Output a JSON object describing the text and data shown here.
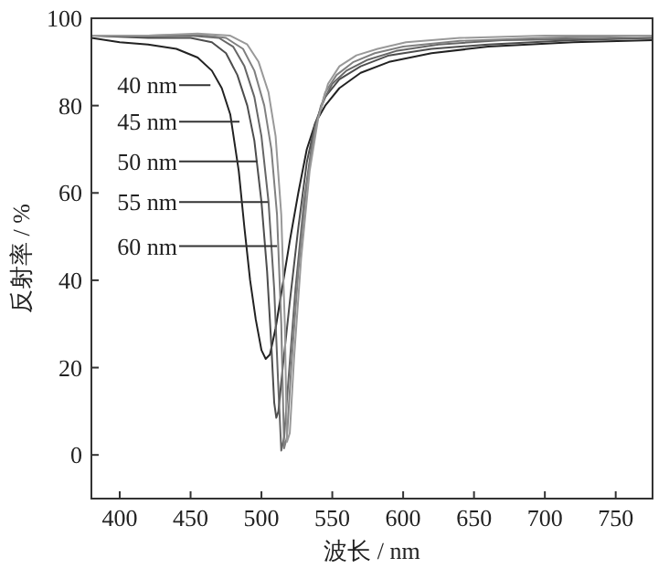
{
  "chart_data": {
    "type": "line",
    "xlabel": "波长 / nm",
    "ylabel": "反射率 / %",
    "xlim": [
      380,
      776
    ],
    "ylim": [
      -10,
      100
    ],
    "xticks": [
      400,
      450,
      500,
      550,
      600,
      650,
      700,
      750
    ],
    "yticks": [
      0,
      20,
      40,
      60,
      80,
      100
    ],
    "grid": false,
    "marker": "none",
    "line_style": "solid",
    "series": [
      {
        "color": "#222222",
        "x": [
          380,
          400,
          420,
          440,
          455,
          465,
          472,
          478,
          484,
          488,
          492,
          496,
          500,
          503,
          506,
          510,
          515,
          520,
          526,
          532,
          538,
          545,
          555,
          570,
          590,
          620,
          660,
          720,
          776
        ],
        "values": [
          95.5,
          94.5,
          94,
          93,
          91,
          88,
          84,
          78,
          65,
          52,
          40,
          31,
          24,
          22,
          23,
          29,
          39,
          49,
          60,
          70,
          76,
          80,
          84,
          87.5,
          90,
          92,
          93.5,
          94.5,
          95
        ]
      },
      {
        "color": "#4d4d4d",
        "x": [
          380,
          420,
          450,
          465,
          475,
          483,
          490,
          495,
          500,
          504,
          507,
          509,
          510.5,
          512,
          515,
          520,
          526,
          532,
          538,
          545,
          555,
          570,
          590,
          620,
          660,
          720,
          776
        ],
        "values": [
          96,
          95.5,
          95.5,
          94.5,
          92,
          87,
          80,
          72,
          58,
          42,
          25,
          12,
          8.5,
          10,
          20,
          35,
          52,
          67,
          76,
          82,
          86,
          89,
          91.5,
          93,
          94,
          95,
          95.5
        ]
      },
      {
        "color": "#666666",
        "x": [
          380,
          420,
          450,
          470,
          480,
          488,
          495,
          500,
          505,
          509,
          512,
          514,
          516,
          519,
          524,
          530,
          536,
          542,
          550,
          560,
          575,
          595,
          625,
          670,
          776
        ],
        "values": [
          96,
          95.8,
          96,
          95.5,
          93.5,
          89,
          82,
          73,
          58,
          38,
          15,
          1,
          4,
          17,
          38,
          58,
          72,
          80,
          85,
          88,
          90.5,
          92.5,
          94,
          95,
          95.5
        ]
      },
      {
        "color": "#808080",
        "x": [
          380,
          420,
          455,
          475,
          487,
          495,
          502,
          507,
          511,
          514,
          516,
          518,
          521,
          526,
          532,
          538,
          545,
          553,
          565,
          580,
          600,
          640,
          700,
          776
        ],
        "values": [
          96,
          96,
          96.3,
          95.5,
          93,
          88,
          80,
          70,
          55,
          30,
          1.5,
          4,
          20,
          42,
          62,
          75,
          83,
          87,
          90,
          92,
          93.5,
          94.8,
          95.5,
          96
        ]
      },
      {
        "color": "#999999",
        "x": [
          380,
          420,
          455,
          478,
          490,
          498,
          505,
          510,
          514,
          516.5,
          518,
          520,
          523,
          528,
          534,
          540,
          547,
          555,
          567,
          582,
          602,
          640,
          700,
          776
        ],
        "values": [
          96,
          96,
          96.5,
          96,
          94,
          90,
          83,
          73,
          55,
          30,
          3,
          5,
          22,
          45,
          65,
          77,
          85,
          89,
          91.5,
          93,
          94.5,
          95.5,
          96,
          96
        ]
      }
    ],
    "annotations": [
      {
        "text": "40 nm",
        "x": 464,
        "y": 84.7
      },
      {
        "text": "45 nm",
        "x": 484.5,
        "y": 76.3
      },
      {
        "text": "50 nm",
        "x": 497,
        "y": 67.2
      },
      {
        "text": "55 nm",
        "x": 504.7,
        "y": 57.9
      },
      {
        "text": "60 nm",
        "x": 511,
        "y": 47.8
      }
    ]
  }
}
